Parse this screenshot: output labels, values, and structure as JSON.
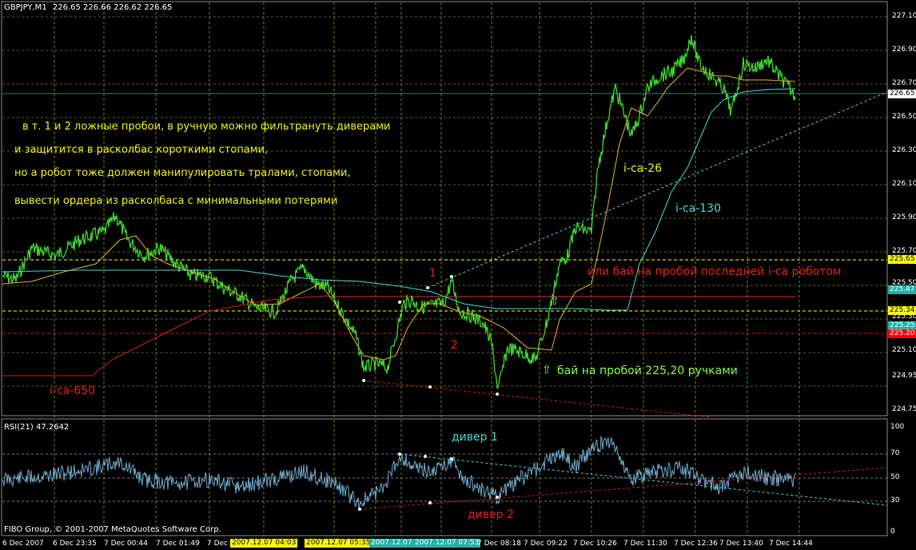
{
  "header": {
    "symbol": "GBPJPY,M1",
    "ohlc": "226.65 226.66 226.62 226.65"
  },
  "rsi_header": {
    "label": "RSI(21)",
    "value": "47.2642"
  },
  "copyright": "FIBO Group, © 2001-2007 MetaQuotes Software Corp.",
  "annotations": {
    "note_1": "в т. 1 и 2 ложные пробои, в ручную можно фильтрануть диверами",
    "note_2": "и защитится в расколбас короткими стопами,",
    "note_3": "но а робот тоже должен манипулировать тралами, стопами,",
    "note_4": "вывести ордера из расколбаса с минимальными потерями",
    "point_1": "1",
    "point_2": "2",
    "ica26": "i-ca-26",
    "ica130": "i-ca-130",
    "ica650": "i-ca-650",
    "robot_buy": "или бай на пробой последней i-ca роботом",
    "manual_buy": "бай на пробой 225,20 ручками",
    "arrow_up": "⇧",
    "diver1": "дивер 1",
    "diver2": "дивер 2"
  },
  "price_axis": [
    "227.10",
    "226.90",
    "226.70",
    "226.50",
    "226.30",
    "226.10",
    "225.90",
    "225.70",
    "225.50",
    "225.30",
    "225.10",
    "224.95",
    "224.75"
  ],
  "price_tags": [
    {
      "value": "226.65",
      "color": "#ffffff",
      "text_color": "#000000"
    },
    {
      "value": "225.65",
      "color": "#ffff00",
      "text_color": "#000000"
    },
    {
      "value": "225.47",
      "color": "#20b2aa",
      "text_color": "#ffffff"
    },
    {
      "value": "225.34",
      "color": "#ffff00",
      "text_color": "#000000"
    },
    {
      "value": "225.25",
      "color": "#20b2aa",
      "text_color": "#ffffff"
    },
    {
      "value": "225.20",
      "color": "#ff0000",
      "text_color": "#ffffff"
    }
  ],
  "rsi_axis": [
    "100",
    "70",
    "50",
    "30",
    "0"
  ],
  "time_axis": [
    "6 Dec 2007",
    "6 Dec 23:35",
    "7 Dec 00:44",
    "7 Dec 01:49",
    "7 Dec",
    "2007.12.07 04:03",
    "2007.12.07 05:35",
    "2007.12.07",
    "2007.12.07 07:53",
    "7 Dec 08:18",
    "7 Dec 09:22",
    "7 Dec 10:26",
    "7 Dec 11:30",
    "7 Dec 12:36",
    "7 Dec 13:40",
    "7 Dec 14:44"
  ],
  "colors": {
    "background": "#000000",
    "price": "#3bd42b",
    "ma26": "#e0b020",
    "ma130": "#3fd8d0",
    "ma650": "#d81818",
    "rsi": "#6fa8c8",
    "grid": "#b0b000"
  }
}
